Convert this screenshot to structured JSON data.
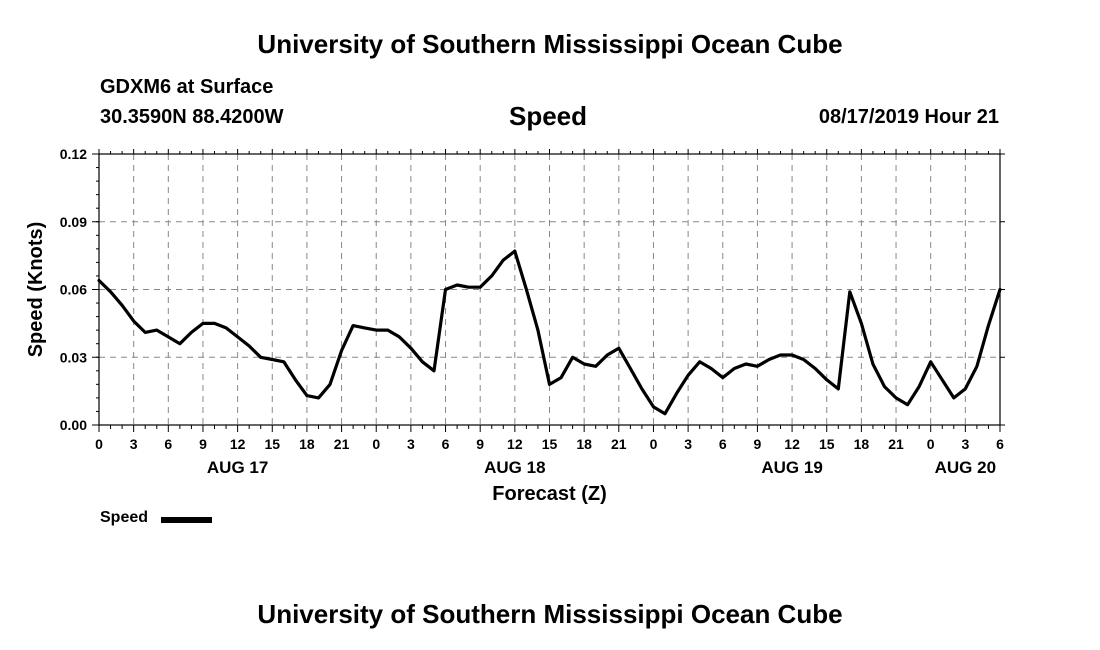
{
  "header": {
    "title": "University of Southern Mississippi Ocean Cube",
    "station": "GDXM6 at Surface",
    "coords": "30.3590N 88.4200W",
    "chart_name": "Speed",
    "datetime": "08/17/2019 Hour 21"
  },
  "footer": {
    "title": "University of Southern Mississippi Ocean Cube"
  },
  "legend": {
    "label": "Speed"
  },
  "chart_data": {
    "type": "line",
    "title": "Speed",
    "xlabel": "Forecast (Z)",
    "ylabel": "Speed (Knots)",
    "ylim": [
      0,
      0.12
    ],
    "xlim": [
      0,
      78
    ],
    "grid": true,
    "y_ticks": [
      "0.00",
      "0.03",
      "0.06",
      "0.09",
      "0.12"
    ],
    "x_tick_labels": [
      "0",
      "3",
      "6",
      "9",
      "12",
      "15",
      "18",
      "21",
      "0",
      "3",
      "6",
      "9",
      "12",
      "15",
      "18",
      "21",
      "0",
      "3",
      "6",
      "9",
      "12",
      "15",
      "18",
      "21",
      "0",
      "3",
      "6"
    ],
    "day_labels": [
      {
        "label": "AUG 17",
        "hour": 12
      },
      {
        "label": "AUG 18",
        "hour": 36
      },
      {
        "label": "AUG 19",
        "hour": 60
      },
      {
        "label": "AUG 20",
        "hour": 75
      }
    ],
    "series": [
      {
        "name": "Speed",
        "color": "#000000",
        "x": [
          0,
          1,
          2,
          3,
          4,
          5,
          6,
          7,
          8,
          9,
          10,
          11,
          12,
          13,
          14,
          15,
          16,
          17,
          18,
          19,
          20,
          21,
          22,
          23,
          24,
          25,
          26,
          27,
          28,
          29,
          30,
          31,
          32,
          33,
          34,
          35,
          36,
          37,
          38,
          39,
          40,
          41,
          42,
          43,
          44,
          45,
          46,
          47,
          48,
          49,
          50,
          51,
          52,
          53,
          54,
          55,
          56,
          57,
          58,
          59,
          60,
          61,
          62,
          63,
          64,
          65,
          66,
          67,
          68,
          69,
          70,
          71,
          72,
          73,
          74,
          75,
          76,
          77,
          78
        ],
        "values": [
          0.064,
          0.059,
          0.053,
          0.046,
          0.041,
          0.042,
          0.039,
          0.036,
          0.041,
          0.045,
          0.045,
          0.043,
          0.039,
          0.035,
          0.03,
          0.029,
          0.028,
          0.02,
          0.013,
          0.012,
          0.018,
          0.033,
          0.044,
          0.043,
          0.042,
          0.042,
          0.039,
          0.034,
          0.028,
          0.024,
          0.06,
          0.062,
          0.061,
          0.061,
          0.066,
          0.073,
          0.077,
          0.06,
          0.042,
          0.018,
          0.021,
          0.03,
          0.027,
          0.026,
          0.031,
          0.034,
          0.025,
          0.016,
          0.008,
          0.005,
          0.014,
          0.022,
          0.028,
          0.025,
          0.021,
          0.025,
          0.027,
          0.026,
          0.029,
          0.031,
          0.031,
          0.029,
          0.025,
          0.02,
          0.016,
          0.059,
          0.045,
          0.027,
          0.017,
          0.012,
          0.009,
          0.017,
          0.028,
          0.02,
          0.012,
          0.016,
          0.026,
          0.044,
          0.06
        ]
      }
    ]
  }
}
